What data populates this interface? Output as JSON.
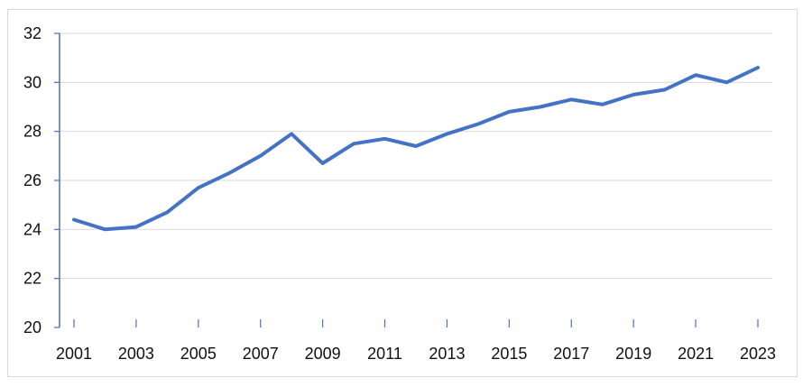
{
  "chart_data": {
    "type": "line",
    "title": "",
    "xlabel": "",
    "ylabel": "",
    "x": [
      2001,
      2002,
      2003,
      2004,
      2005,
      2006,
      2007,
      2008,
      2009,
      2010,
      2011,
      2012,
      2013,
      2014,
      2015,
      2016,
      2017,
      2018,
      2019,
      2020,
      2021,
      2022,
      2023
    ],
    "series": [
      {
        "values": [
          24.4,
          24.0,
          24.1,
          24.7,
          25.7,
          26.3,
          27.0,
          27.9,
          26.7,
          27.5,
          27.7,
          27.4,
          27.9,
          28.3,
          28.8,
          29.0,
          29.3,
          29.1,
          29.5,
          29.7,
          30.3,
          30.0,
          30.6
        ],
        "color": "#4472C4"
      }
    ],
    "xticks": [
      "2001",
      "2003",
      "2005",
      "2007",
      "2009",
      "2011",
      "2013",
      "2015",
      "2017",
      "2019",
      "2021",
      "2023"
    ],
    "yticks": [
      "20",
      "22",
      "24",
      "26",
      "28",
      "30",
      "32"
    ],
    "ylim": [
      20,
      32
    ],
    "grid": true,
    "gridColor": "#d9d9d9",
    "axisColor": "#4472C4"
  }
}
